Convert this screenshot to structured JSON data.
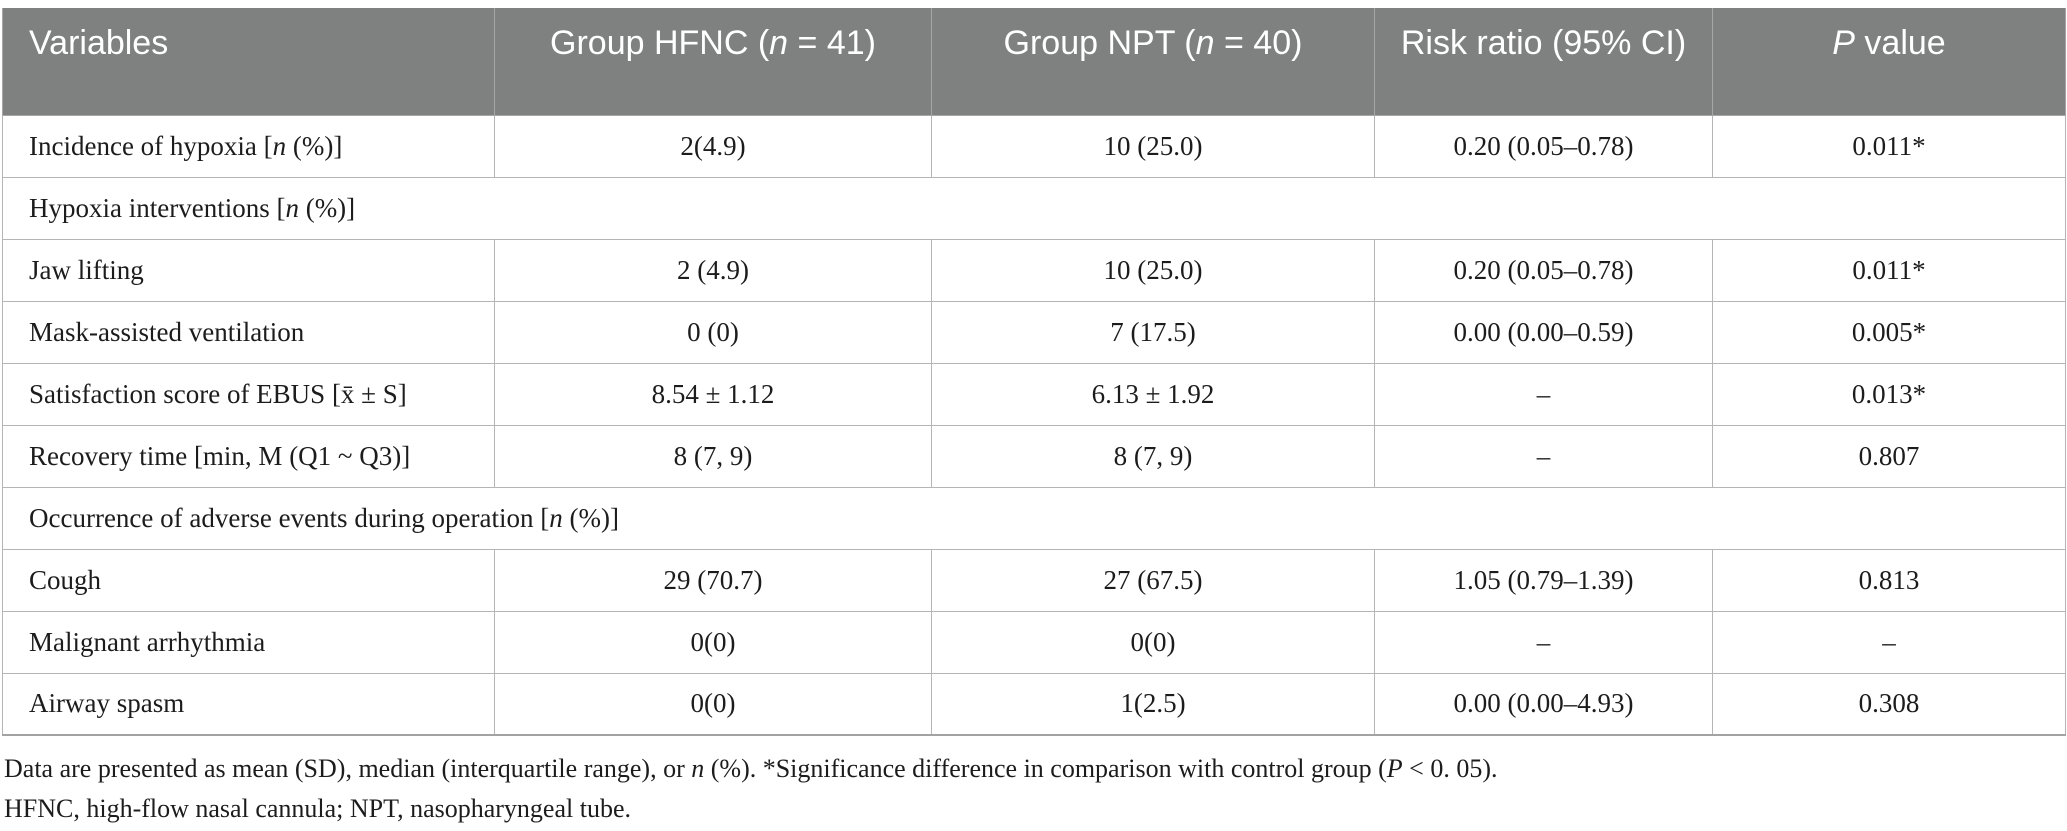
{
  "colors": {
    "header_bg": "#7f8181",
    "header_text": "#ffffff",
    "border": "#b5b5b5",
    "body_text": "#1c1c1c"
  },
  "table": {
    "columns": [
      {
        "label": [
          {
            "t": "Variables",
            "i": false
          }
        ]
      },
      {
        "label": [
          {
            "t": "Group HFNC (",
            "i": false
          },
          {
            "t": "n",
            "i": true
          },
          {
            "t": " = 41)",
            "i": false
          }
        ]
      },
      {
        "label": [
          {
            "t": "Group NPT (",
            "i": false
          },
          {
            "t": "n",
            "i": true
          },
          {
            "t": " = 40)",
            "i": false
          }
        ]
      },
      {
        "label": [
          {
            "t": "Risk ratio (95% CI)",
            "i": false
          }
        ]
      },
      {
        "label": [
          {
            "t": "P",
            "i": true
          },
          {
            "t": " value",
            "i": false
          }
        ]
      }
    ],
    "rows": [
      {
        "type": "data",
        "label": [
          {
            "t": "Incidence of hypoxia [",
            "i": false
          },
          {
            "t": "n",
            "i": true
          },
          {
            "t": " (%)]",
            "i": false
          }
        ],
        "values": [
          "2(4.9)",
          "10 (25.0)",
          "0.20 (0.05–0.78)",
          "0.011*"
        ]
      },
      {
        "type": "section",
        "label": [
          {
            "t": "Hypoxia interventions [",
            "i": false
          },
          {
            "t": "n",
            "i": true
          },
          {
            "t": " (%)]",
            "i": false
          }
        ]
      },
      {
        "type": "data",
        "label": [
          {
            "t": "Jaw lifting",
            "i": false
          }
        ],
        "values": [
          "2 (4.9)",
          "10 (25.0)",
          "0.20 (0.05–0.78)",
          "0.011*"
        ]
      },
      {
        "type": "data",
        "label": [
          {
            "t": "Mask-assisted ventilation",
            "i": false
          }
        ],
        "values": [
          "0 (0)",
          "7 (17.5)",
          "0.00 (0.00–0.59)",
          "0.005*"
        ]
      },
      {
        "type": "data",
        "label": [
          {
            "t": "Satisfaction score of EBUS [x̄ ± S]",
            "i": false
          }
        ],
        "values": [
          "8.54 ± 1.12",
          "6.13 ± 1.92",
          "–",
          "0.013*"
        ]
      },
      {
        "type": "data",
        "label": [
          {
            "t": "Recovery time [min, M (Q1 ~ Q3)]",
            "i": false
          }
        ],
        "values": [
          "8 (7, 9)",
          "8 (7, 9)",
          "–",
          "0.807"
        ]
      },
      {
        "type": "section",
        "label": [
          {
            "t": "Occurrence of adverse events during operation [",
            "i": false
          },
          {
            "t": "n",
            "i": true
          },
          {
            "t": " (%)]",
            "i": false
          }
        ]
      },
      {
        "type": "data",
        "label": [
          {
            "t": "Cough",
            "i": false
          }
        ],
        "values": [
          "29 (70.7)",
          "27 (67.5)",
          "1.05 (0.79–1.39)",
          "0.813"
        ]
      },
      {
        "type": "data",
        "label": [
          {
            "t": "Malignant arrhythmia",
            "i": false
          }
        ],
        "values": [
          "0(0)",
          "0(0)",
          "–",
          "–"
        ]
      },
      {
        "type": "data",
        "label": [
          {
            "t": "Airway spasm",
            "i": false
          }
        ],
        "values": [
          "0(0)",
          "1(2.5)",
          "0.00 (0.00–4.93)",
          "0.308"
        ]
      }
    ]
  },
  "footnotes": [
    [
      {
        "t": "Data are presented as mean (SD), median (interquartile range), or ",
        "i": false
      },
      {
        "t": "n",
        "i": true
      },
      {
        "t": " (%). *Significance difference in comparison with control group (",
        "i": false
      },
      {
        "t": "P",
        "i": true
      },
      {
        "t": " < 0. 05).",
        "i": false
      }
    ],
    [
      {
        "t": "HFNC, high-flow nasal cannula; NPT, nasopharyngeal tube.",
        "i": false
      }
    ]
  ]
}
